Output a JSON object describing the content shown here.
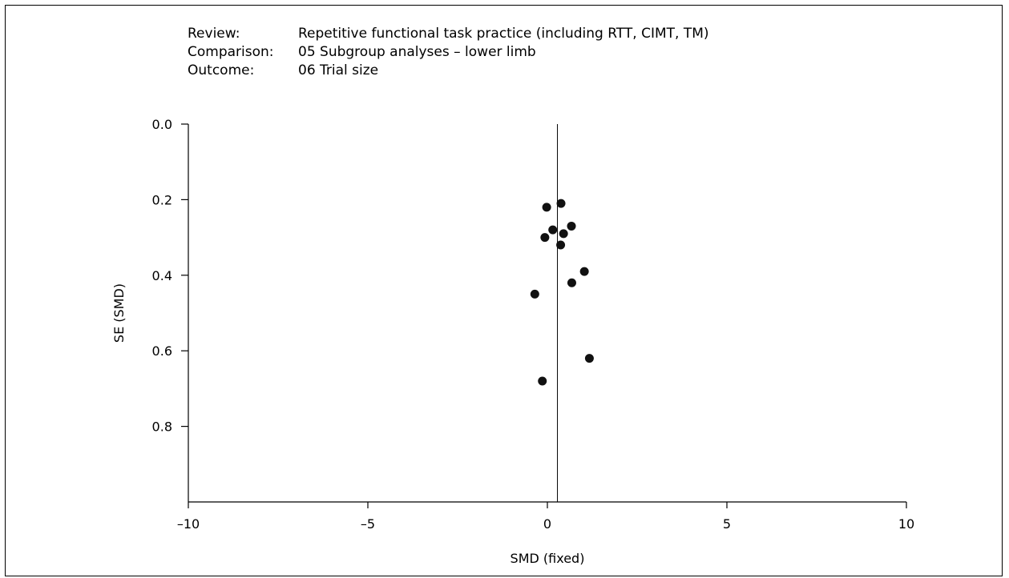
{
  "header": {
    "review_label": "Review:",
    "review_value": "Repetitive functional task practice (including RTT, CIMT, TM)",
    "comparison_label": "Comparison:",
    "comparison_value": "05 Subgroup analyses – lower limb",
    "outcome_label": "Outcome:",
    "outcome_value": "06 Trial size"
  },
  "chart_data": {
    "type": "scatter",
    "title": "",
    "xlabel": "SMD (fixed)",
    "ylabel": "SE (SMD)",
    "xlim": [
      -10,
      10
    ],
    "ylim": [
      0,
      1.0
    ],
    "y_inverted": true,
    "x_ticks": [
      -10,
      -5,
      0,
      5,
      10
    ],
    "x_tick_labels": [
      "–10",
      "–5",
      "0",
      "5",
      "10"
    ],
    "y_ticks": [
      0.0,
      0.2,
      0.4,
      0.6,
      0.8
    ],
    "y_tick_labels": [
      "0.0",
      "0.2",
      "0.4",
      "0.6",
      "0.8"
    ],
    "reference_line_x": 0.28,
    "grid": false,
    "points": [
      {
        "x": 0.38,
        "y": 0.21
      },
      {
        "x": -0.02,
        "y": 0.22
      },
      {
        "x": 0.15,
        "y": 0.28
      },
      {
        "x": 0.67,
        "y": 0.27
      },
      {
        "x": 0.45,
        "y": 0.29
      },
      {
        "x": -0.07,
        "y": 0.3
      },
      {
        "x": 0.37,
        "y": 0.32
      },
      {
        "x": 1.03,
        "y": 0.39
      },
      {
        "x": 0.68,
        "y": 0.42
      },
      {
        "x": -0.35,
        "y": 0.45
      },
      {
        "x": 1.17,
        "y": 0.62
      },
      {
        "x": -0.14,
        "y": 0.68
      }
    ]
  }
}
